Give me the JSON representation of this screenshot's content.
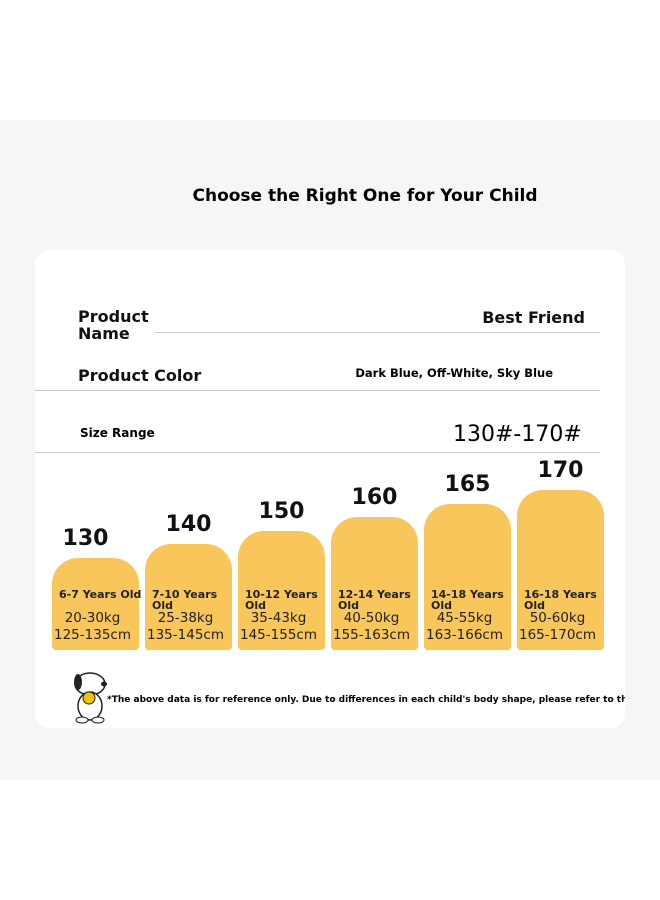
{
  "title": "Choose the Right One for Your Child",
  "rows": [
    {
      "label": "Product Name",
      "value": "Best Friend"
    },
    {
      "label": "Product Color",
      "value": "Dark Blue, Off-White, Sky Blue"
    },
    {
      "label": "Size Range",
      "value": "130#-170#"
    }
  ],
  "sizes": [
    {
      "size": 130,
      "age": "6-7 Years Old",
      "weight": "20-30kg",
      "height": "125-135cm"
    },
    {
      "size": 140,
      "age": "7-10 Years Old",
      "weight": "25-38kg",
      "height": "135-145cm"
    },
    {
      "size": 150,
      "age": "10-12 Years Old",
      "weight": "35-43kg",
      "height": "145-155cm"
    },
    {
      "size": 160,
      "age": "12-14 Years Old",
      "weight": "40-50kg",
      "height": "155-163cm"
    },
    {
      "size": 165,
      "age": "14-18 Years Old",
      "weight": "45-55kg",
      "height": "163-166cm"
    },
    {
      "size": 170,
      "age": "16-18 Years Old",
      "weight": "50-60kg",
      "height": "165-170cm"
    }
  ],
  "note": "*The above data is for reference only. Due to differences in each child's body shape, please refer to the detailed size chart"
}
